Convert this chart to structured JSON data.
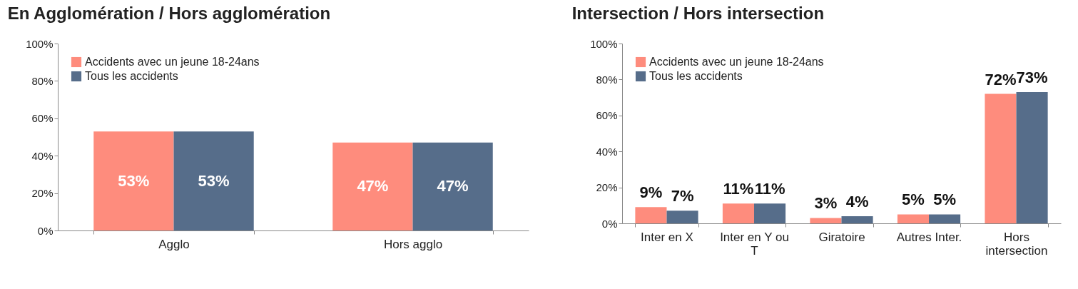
{
  "chart_data": [
    {
      "type": "bar",
      "title": "En Agglomération / Hors agglomération",
      "categories": [
        "Agglo",
        "Hors agglo"
      ],
      "series": [
        {
          "name": "Accidents avec un jeune 18-24ans",
          "color": "#fe8c7d",
          "values": [
            53,
            47
          ],
          "value_labels": [
            "53%",
            "47%"
          ]
        },
        {
          "name": "Tous les accidents",
          "color": "#566d8a",
          "values": [
            53,
            47
          ],
          "value_labels": [
            "53%",
            "47%"
          ]
        }
      ],
      "ylim": [
        0,
        100
      ],
      "yticks": [
        {
          "value": 0,
          "label": "0%"
        },
        {
          "value": 20,
          "label": "20%"
        },
        {
          "value": 40,
          "label": "40%"
        },
        {
          "value": 60,
          "label": "60%"
        },
        {
          "value": 80,
          "label": "80%"
        },
        {
          "value": 100,
          "label": "100%"
        }
      ],
      "legend": "top left"
    },
    {
      "type": "bar",
      "title": "Intersection / Hors intersection",
      "categories": [
        "Inter en X",
        "Inter en Y ou T",
        "Giratoire",
        "Autres Inter.",
        "Hors intersection"
      ],
      "series": [
        {
          "name": "Accidents avec un jeune 18-24ans",
          "color": "#fe8c7d",
          "values": [
            9,
            11,
            3,
            5,
            72
          ],
          "value_labels": [
            "9%",
            "11%",
            "3%",
            "5%",
            "72%"
          ]
        },
        {
          "name": "Tous les accidents",
          "color": "#566d8a",
          "values": [
            7,
            11,
            4,
            5,
            73
          ],
          "value_labels": [
            "7%",
            "11%",
            "4%",
            "5%",
            "73%"
          ]
        }
      ],
      "ylim": [
        0,
        100
      ],
      "yticks": [
        {
          "value": 0,
          "label": "0%"
        },
        {
          "value": 20,
          "label": "20%"
        },
        {
          "value": 40,
          "label": "40%"
        },
        {
          "value": 60,
          "label": "60%"
        },
        {
          "value": 80,
          "label": "80%"
        },
        {
          "value": 100,
          "label": "100%"
        }
      ],
      "legend": "top left"
    }
  ]
}
